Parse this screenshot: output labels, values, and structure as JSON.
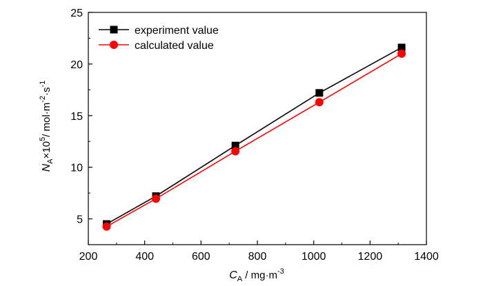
{
  "chart_data": {
    "type": "line",
    "x_range": [
      200,
      1400
    ],
    "y_range": [
      2.5,
      25
    ],
    "x_ticks": [
      200,
      400,
      600,
      800,
      1000,
      1200,
      1400
    ],
    "y_ticks": [
      5,
      10,
      15,
      20,
      25
    ],
    "x_tick_labels": [
      "200",
      "400",
      "600",
      "800",
      "1000",
      "1200",
      "1400"
    ],
    "y_tick_labels": [
      "5",
      "10",
      "15",
      "20",
      "25"
    ],
    "xlabel": {
      "symbol": "C",
      "symbol_sub": "A",
      "unit_base": " / mg·m",
      "unit_sup": "-3"
    },
    "ylabel": {
      "symbol": "N",
      "symbol_sub": "A",
      "mid": "×10",
      "mid_sup": "5",
      "unit_base": "/ mol·m",
      "unit_sup1": "-2",
      "unit_mid": "·s",
      "unit_sup2": "-1"
    },
    "legend_position": "top-left",
    "grid": false,
    "series": [
      {
        "name": "experiment value",
        "color": "#000000",
        "marker": "square",
        "x": [
          265,
          440,
          722,
          1020,
          1312
        ],
        "y": [
          4.5,
          7.2,
          12.1,
          17.2,
          21.6
        ]
      },
      {
        "name": "calculated value",
        "color": "#ff0000",
        "marker": "circle",
        "x": [
          265,
          440,
          722,
          1020,
          1312
        ],
        "y": [
          4.25,
          6.95,
          11.55,
          16.3,
          21.0
        ]
      }
    ]
  }
}
